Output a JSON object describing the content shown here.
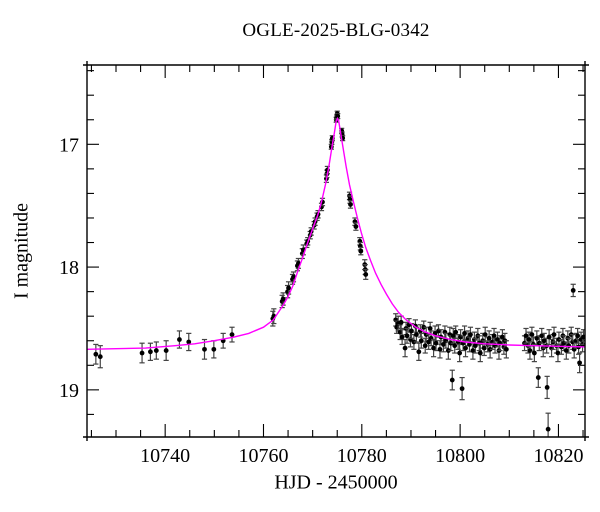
{
  "chart_data": {
    "type": "scatter",
    "title": "OGLE-2025-BLG-0342",
    "xlabel": "HJD - 2450000",
    "ylabel": "I magnitude",
    "xlim": [
      10724.1,
      10825.4
    ],
    "ylim": [
      16.354,
      19.384
    ],
    "y_axis_inverted": true,
    "x_major_ticks": [
      10740,
      10760,
      10780,
      10800,
      10820
    ],
    "x_major_tick_labels": [
      "10740",
      "10760",
      "10780",
      "10800",
      "10820"
    ],
    "x_minor_step": 5,
    "y_major_ticks": [
      17,
      18,
      19
    ],
    "y_major_tick_labels": [
      "17",
      "18",
      "19"
    ],
    "y_minor_step": 0.2,
    "grid": false,
    "legend": "none",
    "colors": {
      "background": "#ffffff",
      "frame": "#000000",
      "points": "#000000",
      "errorbars": "#444444",
      "model": "#ff00ff"
    },
    "model_curve": [
      [
        10724.1,
        18.67
      ],
      [
        10730,
        18.665
      ],
      [
        10736,
        18.66
      ],
      [
        10742,
        18.64
      ],
      [
        10746,
        18.625
      ],
      [
        10750,
        18.6
      ],
      [
        10754,
        18.57
      ],
      [
        10757,
        18.54
      ],
      [
        10760,
        18.49
      ],
      [
        10762,
        18.43
      ],
      [
        10764,
        18.31
      ],
      [
        10765,
        18.24
      ],
      [
        10766,
        18.15
      ],
      [
        10767,
        18.03
      ],
      [
        10768,
        17.92
      ],
      [
        10769,
        17.8
      ],
      [
        10770,
        17.69
      ],
      [
        10771,
        17.58
      ],
      [
        10771.8,
        17.47
      ],
      [
        10772.6,
        17.33
      ],
      [
        10773.3,
        17.18
      ],
      [
        10773.9,
        17.03
      ],
      [
        10774.4,
        16.91
      ],
      [
        10774.8,
        16.81
      ],
      [
        10775.05,
        16.79
      ],
      [
        10775.3,
        16.81
      ],
      [
        10775.7,
        16.91
      ],
      [
        10776.2,
        17.03
      ],
      [
        10776.8,
        17.18
      ],
      [
        10777.5,
        17.33
      ],
      [
        10778.3,
        17.47
      ],
      [
        10779.1,
        17.6
      ],
      [
        10779.9,
        17.72
      ],
      [
        10780.8,
        17.84
      ],
      [
        10781.8,
        17.95
      ],
      [
        10782.8,
        18.05
      ],
      [
        10783.9,
        18.14
      ],
      [
        10785,
        18.22
      ],
      [
        10786.2,
        18.3
      ],
      [
        10787.5,
        18.37
      ],
      [
        10789,
        18.43
      ],
      [
        10791,
        18.49
      ],
      [
        10793,
        18.53
      ],
      [
        10795,
        18.56
      ],
      [
        10798,
        18.59
      ],
      [
        10801,
        18.61
      ],
      [
        10805,
        18.625
      ],
      [
        10810,
        18.635
      ],
      [
        10815,
        18.64
      ],
      [
        10820,
        18.645
      ],
      [
        10825.4,
        18.65
      ]
    ],
    "points": [
      [
        10725.9,
        18.71,
        0.08
      ],
      [
        10726.8,
        18.73,
        0.09
      ],
      [
        10735.3,
        18.7,
        0.08
      ],
      [
        10737.0,
        18.69,
        0.07
      ],
      [
        10738.2,
        18.68,
        0.07
      ],
      [
        10740.2,
        18.68,
        0.08
      ],
      [
        10742.9,
        18.59,
        0.07
      ],
      [
        10744.8,
        18.61,
        0.07
      ],
      [
        10748.0,
        18.67,
        0.08
      ],
      [
        10749.9,
        18.67,
        0.07
      ],
      [
        10751.8,
        18.6,
        0.06
      ],
      [
        10753.6,
        18.55,
        0.06
      ],
      [
        10761.9,
        18.42,
        0.06
      ],
      [
        10762.1,
        18.4,
        0.06
      ],
      [
        10763.8,
        18.28,
        0.05
      ],
      [
        10764.0,
        18.26,
        0.05
      ],
      [
        10764.9,
        18.2,
        0.05
      ],
      [
        10765.1,
        18.17,
        0.05
      ],
      [
        10765.9,
        18.1,
        0.04
      ],
      [
        10766.1,
        18.08,
        0.04
      ],
      [
        10766.9,
        17.99,
        0.04
      ],
      [
        10767.1,
        17.97,
        0.04
      ],
      [
        10767.9,
        17.89,
        0.04
      ],
      [
        10768.1,
        17.86,
        0.04
      ],
      [
        10768.8,
        17.81,
        0.03
      ],
      [
        10769.0,
        17.79,
        0.03
      ],
      [
        10769.5,
        17.74,
        0.03
      ],
      [
        10769.7,
        17.71,
        0.03
      ],
      [
        10770.3,
        17.66,
        0.03
      ],
      [
        10770.5,
        17.63,
        0.03
      ],
      [
        10770.9,
        17.59,
        0.03
      ],
      [
        10771.1,
        17.57,
        0.03
      ],
      [
        10771.8,
        17.51,
        0.03
      ],
      [
        10772.0,
        17.47,
        0.03
      ],
      [
        10772.8,
        17.28,
        0.03
      ],
      [
        10772.9,
        17.24,
        0.03
      ],
      [
        10773.0,
        17.21,
        0.03
      ],
      [
        10773.8,
        17.02,
        0.02
      ],
      [
        10773.9,
        16.98,
        0.02
      ],
      [
        10774.0,
        16.95,
        0.02
      ],
      [
        10774.8,
        16.8,
        0.02
      ],
      [
        10774.9,
        16.78,
        0.02
      ],
      [
        10775.0,
        16.75,
        0.02
      ],
      [
        10775.1,
        16.77,
        0.02
      ],
      [
        10775.9,
        16.89,
        0.02
      ],
      [
        10776.0,
        16.92,
        0.02
      ],
      [
        10776.1,
        16.95,
        0.02
      ],
      [
        10777.5,
        17.42,
        0.03
      ],
      [
        10777.6,
        17.45,
        0.03
      ],
      [
        10777.7,
        17.49,
        0.03
      ],
      [
        10778.6,
        17.63,
        0.03
      ],
      [
        10778.8,
        17.67,
        0.03
      ],
      [
        10779.6,
        17.79,
        0.03
      ],
      [
        10779.7,
        17.83,
        0.03
      ],
      [
        10779.8,
        17.87,
        0.03
      ],
      [
        10780.6,
        17.98,
        0.04
      ],
      [
        10780.7,
        18.02,
        0.04
      ],
      [
        10780.8,
        18.06,
        0.04
      ],
      [
        10786.9,
        18.43,
        0.05
      ],
      [
        10787.1,
        18.49,
        0.05
      ],
      [
        10787.4,
        18.46,
        0.06
      ],
      [
        10787.8,
        18.53,
        0.06
      ],
      [
        10788.0,
        18.45,
        0.05
      ],
      [
        10788.2,
        18.57,
        0.06
      ],
      [
        10788.8,
        18.66,
        0.07
      ],
      [
        10789.0,
        18.5,
        0.05
      ],
      [
        10789.2,
        18.56,
        0.06
      ],
      [
        10789.6,
        18.47,
        0.05
      ],
      [
        10789.9,
        18.59,
        0.06
      ],
      [
        10790.1,
        18.52,
        0.06
      ],
      [
        10790.6,
        18.61,
        0.06
      ],
      [
        10790.9,
        18.48,
        0.05
      ],
      [
        10791.1,
        18.55,
        0.06
      ],
      [
        10791.6,
        18.69,
        0.07
      ],
      [
        10791.9,
        18.52,
        0.05
      ],
      [
        10792.1,
        18.6,
        0.06
      ],
      [
        10792.6,
        18.49,
        0.05
      ],
      [
        10792.9,
        18.64,
        0.06
      ],
      [
        10793.1,
        18.55,
        0.06
      ],
      [
        10793.6,
        18.61,
        0.06
      ],
      [
        10793.9,
        18.5,
        0.05
      ],
      [
        10794.1,
        18.58,
        0.06
      ],
      [
        10794.6,
        18.66,
        0.07
      ],
      [
        10794.9,
        18.54,
        0.06
      ],
      [
        10795.1,
        18.62,
        0.06
      ],
      [
        10795.6,
        18.52,
        0.05
      ],
      [
        10795.9,
        18.67,
        0.07
      ],
      [
        10796.1,
        18.57,
        0.06
      ],
      [
        10796.6,
        18.63,
        0.06
      ],
      [
        10796.9,
        18.53,
        0.05
      ],
      [
        10797.1,
        18.6,
        0.06
      ],
      [
        10797.6,
        18.68,
        0.07
      ],
      [
        10797.9,
        18.55,
        0.06
      ],
      [
        10798.1,
        18.62,
        0.06
      ],
      [
        10798.4,
        18.92,
        0.08
      ],
      [
        10798.6,
        18.56,
        0.06
      ],
      [
        10798.9,
        18.64,
        0.06
      ],
      [
        10799.1,
        18.53,
        0.05
      ],
      [
        10799.6,
        18.61,
        0.06
      ],
      [
        10799.9,
        18.7,
        0.07
      ],
      [
        10800.1,
        18.57,
        0.06
      ],
      [
        10800.4,
        18.99,
        0.09
      ],
      [
        10800.6,
        18.62,
        0.06
      ],
      [
        10800.9,
        18.54,
        0.06
      ],
      [
        10801.1,
        18.66,
        0.07
      ],
      [
        10801.6,
        18.58,
        0.06
      ],
      [
        10801.9,
        18.63,
        0.06
      ],
      [
        10802.1,
        18.55,
        0.06
      ],
      [
        10802.6,
        18.68,
        0.07
      ],
      [
        10802.9,
        18.59,
        0.06
      ],
      [
        10803.1,
        18.64,
        0.06
      ],
      [
        10803.6,
        18.56,
        0.06
      ],
      [
        10803.9,
        18.62,
        0.06
      ],
      [
        10804.1,
        18.7,
        0.07
      ],
      [
        10804.6,
        18.6,
        0.06
      ],
      [
        10804.9,
        18.66,
        0.06
      ],
      [
        10805.1,
        18.55,
        0.06
      ],
      [
        10805.6,
        18.63,
        0.06
      ],
      [
        10805.9,
        18.58,
        0.06
      ],
      [
        10806.1,
        18.67,
        0.07
      ],
      [
        10806.6,
        18.61,
        0.06
      ],
      [
        10806.9,
        18.56,
        0.06
      ],
      [
        10807.1,
        18.64,
        0.06
      ],
      [
        10807.6,
        18.59,
        0.06
      ],
      [
        10807.9,
        18.68,
        0.07
      ],
      [
        10808.1,
        18.62,
        0.06
      ],
      [
        10808.6,
        18.57,
        0.06
      ],
      [
        10808.9,
        18.65,
        0.06
      ],
      [
        10809.1,
        18.6,
        0.06
      ],
      [
        10809.4,
        18.67,
        0.07
      ],
      [
        10813.1,
        18.62,
        0.06
      ],
      [
        10813.4,
        18.56,
        0.06
      ],
      [
        10813.8,
        18.64,
        0.06
      ],
      [
        10814.0,
        18.59,
        0.06
      ],
      [
        10814.2,
        18.68,
        0.07
      ],
      [
        10814.6,
        18.55,
        0.06
      ],
      [
        10814.9,
        18.63,
        0.06
      ],
      [
        10815.1,
        18.7,
        0.07
      ],
      [
        10815.6,
        18.58,
        0.06
      ],
      [
        10815.9,
        18.9,
        0.08
      ],
      [
        10816.1,
        18.62,
        0.06
      ],
      [
        10816.6,
        18.56,
        0.06
      ],
      [
        10816.9,
        18.66,
        0.07
      ],
      [
        10817.1,
        18.6,
        0.06
      ],
      [
        10817.6,
        18.64,
        0.06
      ],
      [
        10817.7,
        18.98,
        0.09
      ],
      [
        10817.9,
        19.32,
        0.13
      ],
      [
        10818.1,
        18.57,
        0.06
      ],
      [
        10818.6,
        18.66,
        0.07
      ],
      [
        10818.9,
        18.61,
        0.06
      ],
      [
        10819.1,
        18.55,
        0.06
      ],
      [
        10819.6,
        18.64,
        0.06
      ],
      [
        10819.9,
        18.7,
        0.07
      ],
      [
        10820.1,
        18.59,
        0.06
      ],
      [
        10820.6,
        18.65,
        0.06
      ],
      [
        10820.9,
        18.56,
        0.06
      ],
      [
        10821.1,
        18.62,
        0.06
      ],
      [
        10821.6,
        18.68,
        0.07
      ],
      [
        10821.9,
        18.58,
        0.06
      ],
      [
        10822.1,
        18.64,
        0.06
      ],
      [
        10822.6,
        18.55,
        0.06
      ],
      [
        10822.9,
        18.61,
        0.06
      ],
      [
        10823.0,
        18.19,
        0.05
      ],
      [
        10823.2,
        18.67,
        0.07
      ],
      [
        10823.6,
        18.6,
        0.06
      ],
      [
        10823.9,
        18.56,
        0.06
      ],
      [
        10824.1,
        18.65,
        0.06
      ],
      [
        10824.3,
        18.78,
        0.08
      ],
      [
        10824.6,
        18.59,
        0.06
      ],
      [
        10824.9,
        18.63,
        0.06
      ],
      [
        10825.1,
        18.57,
        0.06
      ]
    ]
  }
}
